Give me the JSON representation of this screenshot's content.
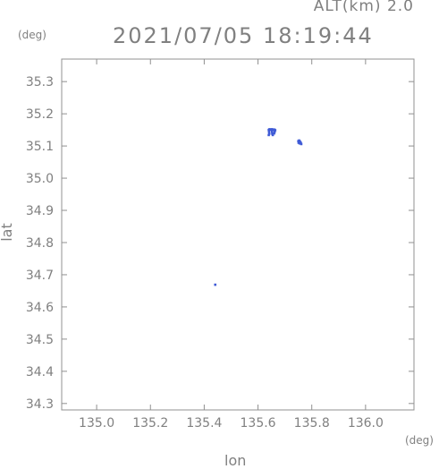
{
  "header": {
    "altitude": "ALT(km) 2.0",
    "datetime": "2021/07/05 18:19:44"
  },
  "chart_data": {
    "type": "scatter",
    "title": "2021/07/05 18:19:44",
    "xlabel": "lon",
    "ylabel": "lat",
    "x_unit": "(deg)",
    "y_unit": "(deg)",
    "xlim": [
      134.87,
      136.18
    ],
    "ylim": [
      34.28,
      35.37
    ],
    "xticks": [
      "135.0",
      "135.2",
      "135.4",
      "135.6",
      "135.8",
      "136.0"
    ],
    "yticks": [
      "34.3",
      "34.4",
      "34.5",
      "34.6",
      "34.7",
      "34.8",
      "34.9",
      "35.0",
      "35.1",
      "35.2",
      "35.3"
    ],
    "grid": false,
    "marker_color": "#3f5bd6",
    "points": [
      {
        "x": 135.64,
        "y": 35.15
      },
      {
        "x": 135.643,
        "y": 35.152
      },
      {
        "x": 135.646,
        "y": 35.151
      },
      {
        "x": 135.649,
        "y": 35.15
      },
      {
        "x": 135.652,
        "y": 35.152
      },
      {
        "x": 135.655,
        "y": 35.151
      },
      {
        "x": 135.658,
        "y": 35.15
      },
      {
        "x": 135.661,
        "y": 35.151
      },
      {
        "x": 135.664,
        "y": 35.149
      },
      {
        "x": 135.641,
        "y": 35.144
      },
      {
        "x": 135.642,
        "y": 35.138
      },
      {
        "x": 135.64,
        "y": 35.134
      },
      {
        "x": 135.652,
        "y": 35.144
      },
      {
        "x": 135.653,
        "y": 35.138
      },
      {
        "x": 135.655,
        "y": 35.134
      },
      {
        "x": 135.662,
        "y": 35.144
      },
      {
        "x": 135.66,
        "y": 35.139
      },
      {
        "x": 135.75,
        "y": 35.115
      },
      {
        "x": 135.753,
        "y": 35.117
      },
      {
        "x": 135.756,
        "y": 35.114
      },
      {
        "x": 135.751,
        "y": 35.11
      },
      {
        "x": 135.755,
        "y": 35.108
      },
      {
        "x": 135.759,
        "y": 35.11
      },
      {
        "x": 135.761,
        "y": 35.106
      },
      {
        "x": 135.441,
        "y": 34.669
      }
    ]
  }
}
